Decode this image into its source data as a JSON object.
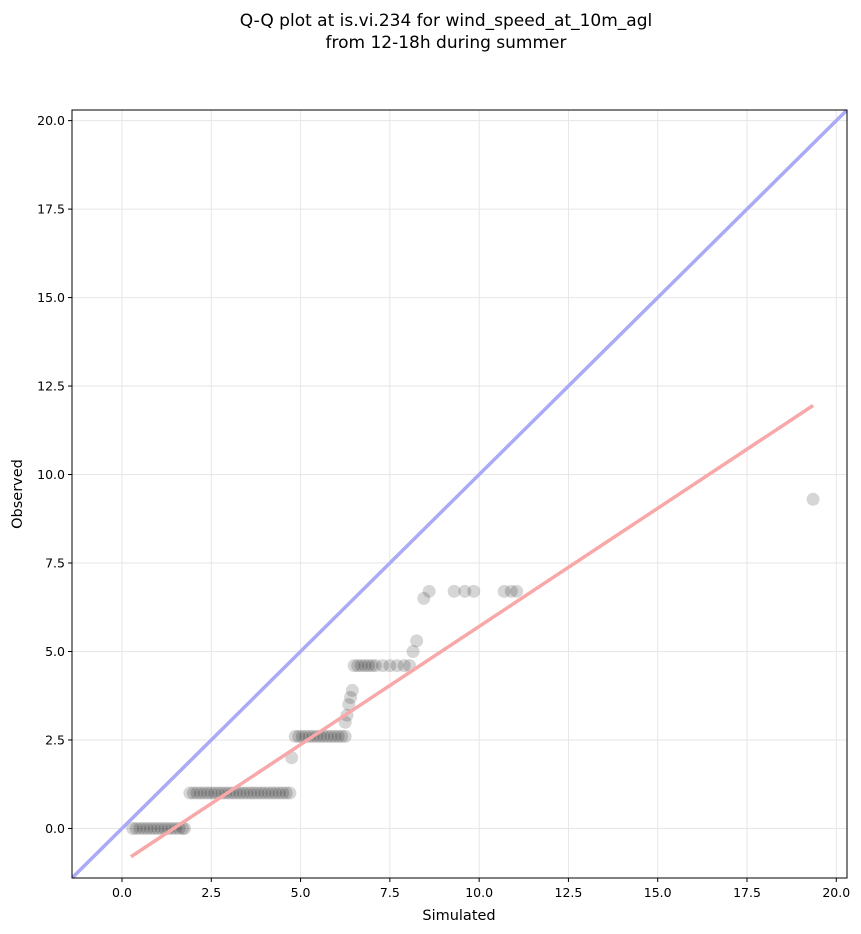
{
  "chart_data": {
    "type": "scatter",
    "title_lines": [
      "Q-Q plot at is.vi.234 for wind_speed_at_10m_agl",
      "from 12-18h during summer"
    ],
    "xlabel": "Simulated",
    "ylabel": "Observed",
    "xlim": [
      -1.4,
      20.3
    ],
    "ylim": [
      -1.4,
      20.3
    ],
    "xticks": [
      0.0,
      2.5,
      5.0,
      7.5,
      10.0,
      12.5,
      15.0,
      17.5,
      20.0
    ],
    "yticks": [
      0.0,
      2.5,
      5.0,
      7.5,
      10.0,
      12.5,
      15.0,
      17.5,
      20.0
    ],
    "grid": true,
    "colors": {
      "points": "#000000",
      "identity_line": "#aaaaf6",
      "fit_line": "#f8a8a8"
    },
    "identity_line": {
      "x": [
        -1.4,
        20.3
      ],
      "y": [
        -1.4,
        20.3
      ]
    },
    "fit_line": {
      "x": [
        0.25,
        19.35
      ],
      "y": [
        -0.8,
        11.95
      ]
    },
    "points": [
      [
        0.3,
        0.0
      ],
      [
        0.4,
        0.0
      ],
      [
        0.5,
        0.0
      ],
      [
        0.6,
        0.0
      ],
      [
        0.7,
        0.0
      ],
      [
        0.8,
        0.0
      ],
      [
        0.9,
        0.0
      ],
      [
        1.0,
        0.0
      ],
      [
        1.1,
        0.0
      ],
      [
        1.2,
        0.0
      ],
      [
        1.3,
        0.0
      ],
      [
        1.4,
        0.0
      ],
      [
        1.5,
        0.0
      ],
      [
        1.6,
        0.0
      ],
      [
        1.7,
        0.0
      ],
      [
        1.75,
        0.0
      ],
      [
        1.9,
        1.0
      ],
      [
        2.0,
        1.0
      ],
      [
        2.1,
        1.0
      ],
      [
        2.2,
        1.0
      ],
      [
        2.3,
        1.0
      ],
      [
        2.4,
        1.0
      ],
      [
        2.5,
        1.0
      ],
      [
        2.6,
        1.0
      ],
      [
        2.7,
        1.0
      ],
      [
        2.8,
        1.0
      ],
      [
        2.9,
        1.0
      ],
      [
        3.0,
        1.0
      ],
      [
        3.1,
        1.0
      ],
      [
        3.2,
        1.0
      ],
      [
        3.3,
        1.0
      ],
      [
        3.4,
        1.0
      ],
      [
        3.5,
        1.0
      ],
      [
        3.6,
        1.0
      ],
      [
        3.7,
        1.0
      ],
      [
        3.8,
        1.0
      ],
      [
        3.9,
        1.0
      ],
      [
        4.0,
        1.0
      ],
      [
        4.1,
        1.0
      ],
      [
        4.2,
        1.0
      ],
      [
        4.3,
        1.0
      ],
      [
        4.4,
        1.0
      ],
      [
        4.5,
        1.0
      ],
      [
        4.6,
        1.0
      ],
      [
        4.7,
        1.0
      ],
      [
        4.75,
        2.0
      ],
      [
        4.85,
        2.6
      ],
      [
        4.95,
        2.6
      ],
      [
        5.05,
        2.6
      ],
      [
        5.15,
        2.6
      ],
      [
        5.25,
        2.6
      ],
      [
        5.35,
        2.6
      ],
      [
        5.45,
        2.6
      ],
      [
        5.55,
        2.6
      ],
      [
        5.65,
        2.6
      ],
      [
        5.75,
        2.6
      ],
      [
        5.85,
        2.6
      ],
      [
        5.95,
        2.6
      ],
      [
        6.05,
        2.6
      ],
      [
        6.15,
        2.6
      ],
      [
        6.25,
        2.6
      ],
      [
        6.25,
        3.0
      ],
      [
        6.3,
        3.2
      ],
      [
        6.35,
        3.5
      ],
      [
        6.4,
        3.7
      ],
      [
        6.45,
        3.9
      ],
      [
        6.5,
        4.6
      ],
      [
        6.6,
        4.6
      ],
      [
        6.7,
        4.6
      ],
      [
        6.8,
        4.6
      ],
      [
        6.9,
        4.6
      ],
      [
        7.0,
        4.6
      ],
      [
        7.1,
        4.6
      ],
      [
        7.3,
        4.6
      ],
      [
        7.5,
        4.6
      ],
      [
        7.7,
        4.6
      ],
      [
        7.9,
        4.6
      ],
      [
        8.05,
        4.6
      ],
      [
        8.15,
        5.0
      ],
      [
        8.25,
        5.3
      ],
      [
        8.45,
        6.5
      ],
      [
        8.6,
        6.7
      ],
      [
        9.3,
        6.7
      ],
      [
        9.6,
        6.7
      ],
      [
        9.85,
        6.7
      ],
      [
        10.7,
        6.7
      ],
      [
        10.9,
        6.7
      ],
      [
        11.05,
        6.7
      ],
      [
        19.35,
        9.3
      ]
    ]
  }
}
